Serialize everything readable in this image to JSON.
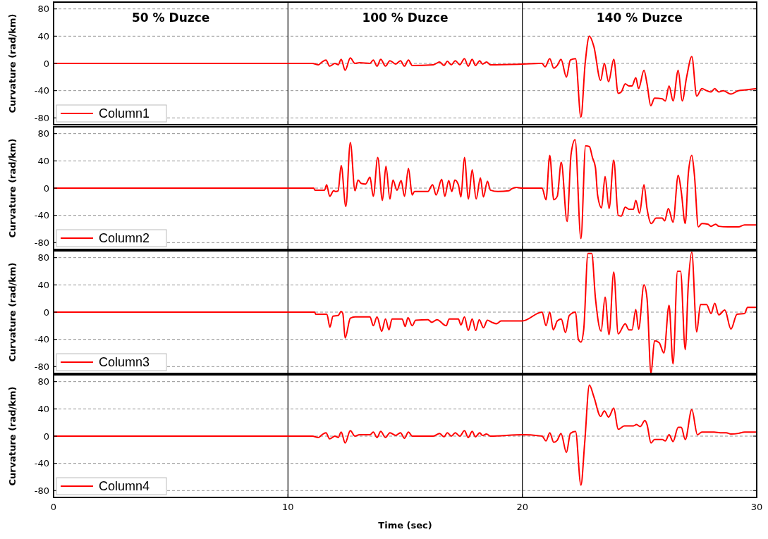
{
  "chart_data": [
    {
      "type": "line",
      "ylabel": "Curvature (rad/km)",
      "annotations": [
        "50 % Duzce",
        "100 % Duzce",
        "140 % Duzce"
      ],
      "xlim": [
        0,
        30
      ],
      "xticks": [
        0,
        10,
        20,
        30
      ],
      "ylim": [
        -90,
        90
      ],
      "yticks": [
        -80,
        -40,
        0,
        40,
        80
      ],
      "grid": "y",
      "legend": "bottom left",
      "tick_labels": "y",
      "ref_lines": [
        {
          "axis": "x",
          "value": 10,
          "color": "#000000"
        },
        {
          "axis": "x",
          "value": 20,
          "color": "#000000"
        }
      ],
      "series": [
        {
          "name": "Column1",
          "color": "#ff0000",
          "x": [
            0,
            10,
            11.04,
            11.3,
            11.45,
            11.62,
            11.78,
            12.0,
            12.14,
            12.27,
            12.44,
            12.66,
            12.86,
            13.05,
            13.5,
            13.64,
            13.8,
            13.96,
            14.16,
            14.35,
            14.6,
            14.8,
            14.97,
            15.14,
            15.3,
            16.2,
            16.47,
            16.66,
            16.8,
            16.97,
            17.14,
            17.33,
            17.53,
            17.69,
            17.86,
            18.0,
            18.18,
            18.3,
            18.47,
            18.64,
            20,
            20.84,
            20.97,
            21.17,
            21.34,
            21.49,
            21.65,
            21.88,
            22.05,
            22.27,
            22.5,
            22.68,
            22.86,
            23.05,
            23.34,
            23.5,
            23.68,
            23.9,
            24.09,
            24.22,
            24.39,
            24.55,
            24.68,
            24.84,
            24.96,
            25.19,
            25.32,
            25.48,
            25.64,
            25.97,
            26.1,
            26.26,
            26.43,
            26.65,
            26.82,
            27.01,
            27.23,
            27.44,
            27.66,
            27.86,
            28.05,
            28.21,
            28.38,
            28.57,
            28.9,
            29.22,
            29.48,
            30
          ],
          "values": [
            0,
            0,
            0,
            -2,
            2,
            5,
            -4,
            0,
            -2,
            6,
            -10,
            8,
            0,
            1,
            0,
            5,
            -4,
            6,
            -4,
            4,
            -1,
            4,
            -4,
            5,
            -3,
            -2,
            2,
            -3,
            3,
            -2,
            4,
            -2,
            7,
            -4,
            6,
            -3,
            4,
            -1,
            2,
            -2,
            -1,
            0,
            -5,
            7,
            -7,
            -3,
            6,
            -20,
            5,
            7,
            -79,
            0,
            40,
            25,
            -25,
            0,
            -27,
            6,
            -44,
            -42,
            -30,
            -33,
            -33,
            -21,
            -37,
            -10,
            -30,
            -62,
            -51,
            -52,
            -55,
            -33,
            -55,
            -10,
            -55,
            -20,
            10,
            -48,
            -37,
            -40,
            -42,
            -37,
            -42,
            -40,
            -45,
            -40,
            -39,
            -37
          ]
        }
      ]
    },
    {
      "type": "line",
      "ylabel": "Curvature (rad/km)",
      "xlim": [
        0,
        30
      ],
      "xticks": [
        0,
        10,
        20,
        30
      ],
      "ylim": [
        -90,
        90
      ],
      "yticks": [
        -80,
        -40,
        0,
        40,
        80
      ],
      "grid": "y",
      "legend": "bottom left",
      "tick_labels": "y",
      "ref_lines": [
        {
          "axis": "x",
          "value": 10,
          "color": "#000000"
        },
        {
          "axis": "x",
          "value": 20,
          "color": "#000000"
        }
      ],
      "series": [
        {
          "name": "Column2",
          "color": "#ff0000",
          "x": [
            0,
            10,
            11.1,
            11.15,
            11.56,
            11.65,
            11.78,
            11.95,
            12.05,
            12.14,
            12.27,
            12.47,
            12.66,
            12.86,
            12.99,
            13.12,
            13.31,
            13.5,
            13.64,
            13.83,
            14.03,
            14.18,
            14.35,
            14.48,
            14.65,
            14.83,
            14.97,
            15.14,
            15.3,
            15.4,
            15.97,
            16.17,
            16.32,
            16.56,
            16.69,
            16.86,
            16.99,
            17.12,
            17.27,
            17.38,
            17.53,
            17.7,
            17.86,
            18.03,
            18.21,
            18.34,
            18.51,
            18.64,
            18.96,
            19.42,
            19.55,
            19.74,
            20,
            20.84,
            21.01,
            21.17,
            21.34,
            21.49,
            21.66,
            21.91,
            22.08,
            22.25,
            22.5,
            22.7,
            22.86,
            22.99,
            23.12,
            23.21,
            23.38,
            23.53,
            23.7,
            23.9,
            24.09,
            24.22,
            24.39,
            24.55,
            24.74,
            24.84,
            25,
            25.19,
            25.32,
            25.5,
            25.71,
            25.97,
            26.07,
            26.23,
            26.43,
            26.65,
            26.78,
            26.95,
            27.08,
            27.23,
            27.34,
            27.51,
            27.66,
            27.92,
            28.05,
            28.25,
            28.38,
            28.77,
            29.22,
            29.48,
            30
          ],
          "values": [
            0,
            0,
            0,
            -3,
            -3,
            5,
            -12,
            -4,
            -5,
            -4,
            33,
            -27,
            67,
            -4,
            12,
            7,
            6,
            16,
            -12,
            45,
            -18,
            32,
            -16,
            12,
            -3,
            11,
            -12,
            29,
            -10,
            -5,
            -5,
            5,
            -10,
            13,
            -12,
            11,
            -5,
            12,
            5,
            -13,
            45,
            -16,
            27,
            -16,
            15,
            -13,
            10,
            -3,
            -5,
            -4,
            -1,
            1,
            0,
            0,
            -17,
            48,
            -17,
            -12,
            38,
            -49,
            50,
            71,
            -74,
            62,
            61,
            45,
            30,
            -10,
            -29,
            17,
            -30,
            41,
            -40,
            -41,
            -28,
            -31,
            -31,
            -18,
            -37,
            5,
            -30,
            -52,
            -44,
            -44,
            -48,
            -30,
            -50,
            19,
            -5,
            -52,
            20,
            48,
            20,
            -57,
            -52,
            -53,
            -56,
            -53,
            -56,
            -57,
            -57,
            -54,
            -54
          ]
        }
      ]
    },
    {
      "type": "line",
      "ylabel": "Curvature (rad/km)",
      "xlim": [
        0,
        30
      ],
      "xticks": [
        0,
        10,
        20,
        30
      ],
      "ylim": [
        -90,
        90
      ],
      "yticks": [
        -80,
        -40,
        0,
        40,
        80
      ],
      "grid": "y",
      "legend": "bottom left",
      "tick_labels": "y",
      "ref_lines": [
        {
          "axis": "x",
          "value": 10,
          "color": "#000000"
        },
        {
          "axis": "x",
          "value": 20,
          "color": "#000000"
        }
      ],
      "series": [
        {
          "name": "Column3",
          "color": "#ff0000",
          "x": [
            0,
            10,
            11.14,
            11.18,
            11.66,
            11.79,
            11.92,
            12.14,
            12.27,
            12.34,
            12.44,
            12.66,
            12.86,
            13.5,
            13.64,
            13.8,
            14.0,
            14.16,
            14.31,
            14.44,
            14.87,
            15.0,
            15.12,
            15.3,
            15.45,
            15.97,
            16.14,
            16.36,
            16.75,
            16.88,
            17.27,
            17.38,
            17.53,
            17.69,
            17.86,
            18.01,
            18.16,
            18.34,
            18.51,
            18.7,
            18.9,
            19.09,
            20,
            20.84,
            21.01,
            21.17,
            21.32,
            21.49,
            21.66,
            21.84,
            22.0,
            22.27,
            22.39,
            22.5,
            22.62,
            22.8,
            22.96,
            23.12,
            23.36,
            23.53,
            23.7,
            23.9,
            24.09,
            24.39,
            24.55,
            24.68,
            24.84,
            24.96,
            25.19,
            25.32,
            25.49,
            25.64,
            25.84,
            26.04,
            26.26,
            26.43,
            26.62,
            26.75,
            26.95,
            27.08,
            27.23,
            27.44,
            27.6,
            27.86,
            28.05,
            28.21,
            28.38,
            28.64,
            28.9,
            29.16,
            29.48,
            29.61,
            30
          ],
          "values": [
            0,
            0,
            0,
            -3,
            -3,
            -22,
            -6,
            -5,
            1,
            -2,
            -38,
            -9,
            -7,
            -7,
            -20,
            -7,
            -28,
            -10,
            -26,
            -10,
            -10,
            -21,
            -8,
            -20,
            -12,
            -11,
            -15,
            -11,
            -20,
            -10,
            -10,
            -19,
            -7,
            -27,
            -10,
            -27,
            -11,
            -23,
            -12,
            -15,
            -17,
            -13,
            -13,
            0,
            -20,
            0,
            -26,
            -13,
            -10,
            -30,
            -5,
            0,
            -40,
            -44,
            -25,
            86,
            86,
            20,
            -28,
            22,
            -33,
            59,
            -32,
            -17,
            -26,
            -26,
            4,
            -25,
            40,
            20,
            -90,
            -42,
            -45,
            -60,
            10,
            -76,
            60,
            60,
            -55,
            40,
            88,
            -29,
            11,
            11,
            -2,
            13,
            -4,
            3,
            -25,
            -3,
            -2,
            7,
            7
          ]
        }
      ]
    },
    {
      "type": "line",
      "ylabel": "Curvature (rad/km)",
      "xlabel": "Time (sec)",
      "xlim": [
        0,
        30
      ],
      "xticks": [
        0,
        10,
        20,
        30
      ],
      "ylim": [
        -90,
        90
      ],
      "yticks": [
        -80,
        -40,
        0,
        40,
        80
      ],
      "grid": "y",
      "legend": "bottom left",
      "ref_lines": [
        {
          "axis": "x",
          "value": 10,
          "color": "#000000"
        },
        {
          "axis": "x",
          "value": 20,
          "color": "#000000"
        }
      ],
      "series": [
        {
          "name": "Column4",
          "color": "#ff0000",
          "x": [
            0,
            10,
            11.04,
            11.3,
            11.45,
            11.62,
            11.78,
            12.0,
            12.14,
            12.27,
            12.44,
            12.66,
            12.86,
            13.05,
            13.5,
            13.64,
            13.8,
            13.96,
            14.16,
            14.35,
            14.6,
            14.8,
            14.97,
            15.14,
            15.3,
            16.2,
            16.47,
            16.66,
            16.8,
            16.97,
            17.14,
            17.33,
            17.53,
            17.69,
            17.86,
            18.0,
            18.18,
            18.3,
            18.47,
            18.64,
            20,
            20.84,
            21.01,
            21.17,
            21.34,
            21.49,
            21.65,
            21.88,
            22.05,
            22.27,
            22.5,
            22.66,
            22.86,
            23.05,
            23.34,
            23.5,
            23.68,
            23.9,
            24.09,
            24.35,
            24.74,
            24.87,
            25.03,
            25.23,
            25.32,
            25.49,
            25.64,
            25.97,
            26.1,
            26.26,
            26.43,
            26.65,
            26.78,
            26.95,
            27.23,
            27.47,
            27.66,
            28.18,
            28.44,
            28.7,
            28.9,
            29.22,
            29.48,
            30
          ],
          "values": [
            0,
            0,
            0,
            -2,
            2,
            5,
            -4,
            0,
            -2,
            6,
            -10,
            8,
            0,
            2,
            2,
            6,
            -2,
            7,
            -2,
            5,
            1,
            5,
            -3,
            6,
            0,
            0,
            4,
            -1,
            5,
            0,
            5,
            0,
            8,
            -2,
            7,
            -1,
            5,
            1,
            3,
            0,
            2,
            0,
            -7,
            5,
            -9,
            -6,
            4,
            -24,
            4,
            7,
            -72,
            -10,
            75,
            58,
            29,
            37,
            28,
            41,
            10,
            15,
            15,
            17,
            14,
            23,
            17,
            -10,
            -5,
            -5,
            -7,
            2,
            -8,
            13,
            13,
            -5,
            39,
            2,
            6,
            6,
            5,
            5,
            3,
            4,
            6,
            6
          ]
        }
      ]
    }
  ]
}
